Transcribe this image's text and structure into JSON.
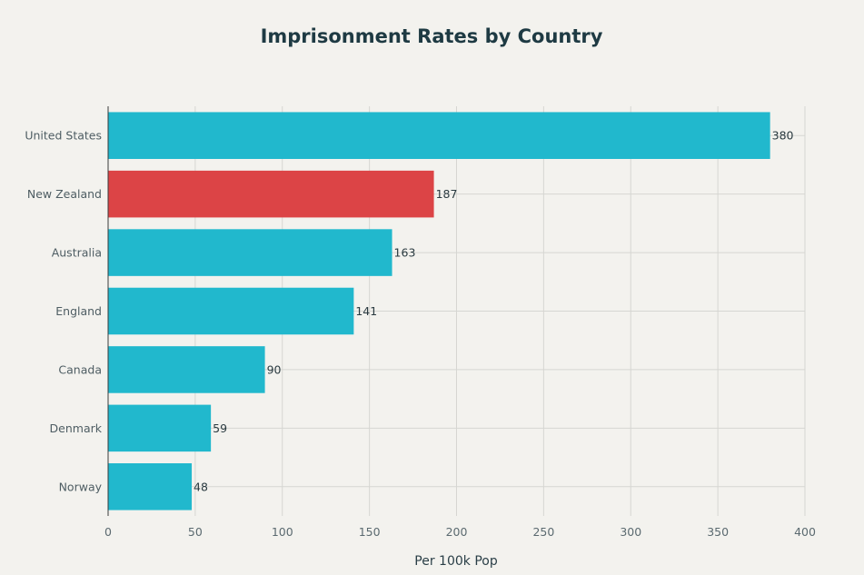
{
  "chart_data": {
    "type": "bar",
    "orientation": "horizontal",
    "title": "Imprisonment Rates by Country",
    "xlabel": "Per 100k Pop",
    "ylabel": "",
    "xlim": [
      0,
      400
    ],
    "xticks": [
      0,
      50,
      100,
      150,
      200,
      250,
      300,
      350,
      400
    ],
    "grid": true,
    "categories": [
      "United States",
      "New Zealand",
      "Australia",
      "England",
      "Canada",
      "Denmark",
      "Norway"
    ],
    "values": [
      380,
      187,
      163,
      141,
      90,
      59,
      48
    ],
    "colors": [
      "#21b8cd",
      "#dc4446",
      "#21b8cd",
      "#21b8cd",
      "#21b8cd",
      "#21b8cd",
      "#21b8cd"
    ],
    "highlight": "New Zealand"
  }
}
